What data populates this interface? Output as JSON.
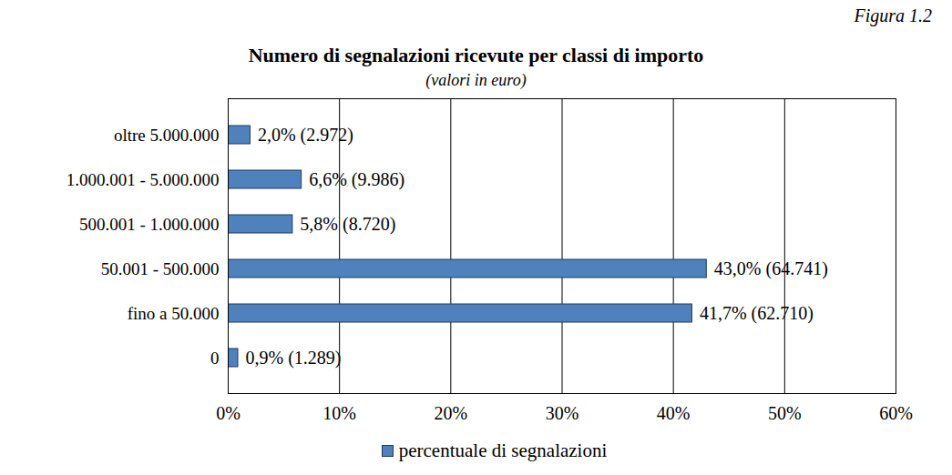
{
  "chart_data": {
    "type": "bar",
    "orientation": "horizontal",
    "title": "Numero di segnalazioni ricevute per classi di importo",
    "subtitle": "(valori in euro)",
    "annotations": [
      "Figura 1.2"
    ],
    "categories": [
      "oltre 5.000.000",
      "1.000.001 - 5.000.000",
      "500.001 - 1.000.000",
      "50.001 - 500.000",
      "fino a 50.000",
      "0"
    ],
    "series": [
      {
        "name": "percentuale di segnalazioni",
        "color": "#4f81bd",
        "values": [
          2.0,
          6.6,
          5.8,
          43.0,
          41.7,
          0.9
        ],
        "value_labels": [
          "2,0% (2.972)",
          "6,6% (9.986)",
          "5,8% (8.720)",
          "43,0% (64.741)",
          "41,7% (62.710)",
          "0,9% (1.289)"
        ]
      }
    ],
    "xlim": [
      0,
      60
    ],
    "xticks": [
      {
        "value": 0,
        "label": "0%"
      },
      {
        "value": 10,
        "label": "10%"
      },
      {
        "value": 20,
        "label": "20%"
      },
      {
        "value": 30,
        "label": "30%"
      },
      {
        "value": 40,
        "label": "40%"
      },
      {
        "value": 50,
        "label": "50%"
      },
      {
        "value": 60,
        "label": "60%"
      }
    ],
    "grid": true,
    "data_labels": true,
    "legend": "bottom"
  }
}
